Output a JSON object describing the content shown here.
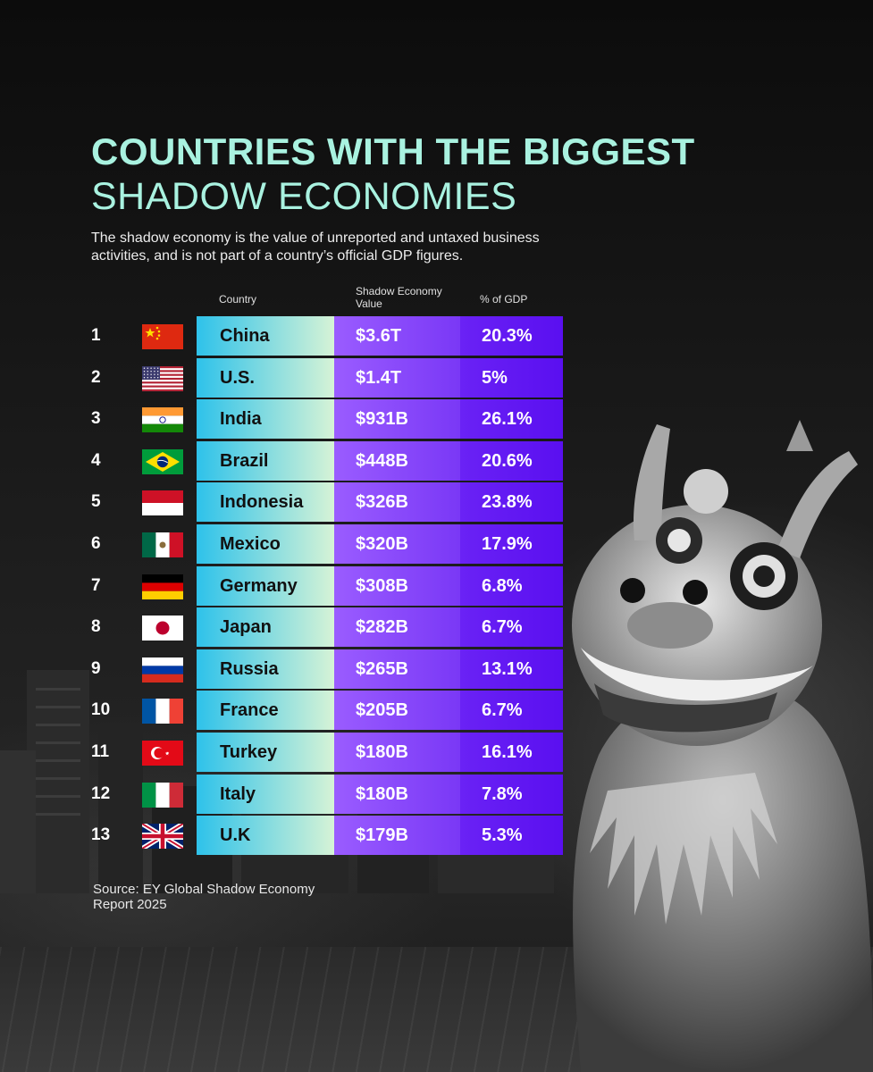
{
  "header": {
    "title_line1": "COUNTRIES WITH THE BIGGEST",
    "title_line2": "SHADOW ECONOMIES",
    "subtitle": "The shadow economy is the value of unreported and untaxed business activities, and is not part of a country’s official GDP figures."
  },
  "columns": {
    "country": "Country",
    "value": "Shadow Economy Value",
    "pct": "% of GDP"
  },
  "colors": {
    "title": "#a9f2e0",
    "country_cell_start": "#2ec2ea",
    "country_cell_end": "#d6f3d6",
    "value_cell": "#8c4cfc",
    "pct_cell": "#6318f3"
  },
  "chart_data": {
    "type": "table",
    "columns": [
      "Country",
      "Shadow Economy Value",
      "% of GDP"
    ],
    "rows": [
      {
        "rank": "1",
        "flag": "china-flag-icon",
        "country": "China",
        "value": "$3.6T",
        "pct": "20.3%"
      },
      {
        "rank": "2",
        "flag": "usa-flag-icon",
        "country": "U.S.",
        "value": "$1.4T",
        "pct": "5%"
      },
      {
        "rank": "3",
        "flag": "india-flag-icon",
        "country": "India",
        "value": "$931B",
        "pct": "26.1%"
      },
      {
        "rank": "4",
        "flag": "brazil-flag-icon",
        "country": "Brazil",
        "value": "$448B",
        "pct": "20.6%"
      },
      {
        "rank": "5",
        "flag": "indonesia-flag-icon",
        "country": "Indonesia",
        "value": "$326B",
        "pct": "23.8%"
      },
      {
        "rank": "6",
        "flag": "mexico-flag-icon",
        "country": "Mexico",
        "value": "$320B",
        "pct": "17.9%"
      },
      {
        "rank": "7",
        "flag": "germany-flag-icon",
        "country": "Germany",
        "value": "$308B",
        "pct": "6.8%"
      },
      {
        "rank": "8",
        "flag": "japan-flag-icon",
        "country": "Japan",
        "value": "$282B",
        "pct": "6.7%"
      },
      {
        "rank": "9",
        "flag": "russia-flag-icon",
        "country": "Russia",
        "value": "$265B",
        "pct": "13.1%"
      },
      {
        "rank": "10",
        "flag": "france-flag-icon",
        "country": "France",
        "value": "$205B",
        "pct": "6.7%"
      },
      {
        "rank": "11",
        "flag": "turkey-flag-icon",
        "country": "Turkey",
        "value": "$180B",
        "pct": "16.1%"
      },
      {
        "rank": "12",
        "flag": "italy-flag-icon",
        "country": "Italy",
        "value": "$180B",
        "pct": "7.8%"
      },
      {
        "rank": "13",
        "flag": "uk-flag-icon",
        "country": "U.K",
        "value": "$179B",
        "pct": "5.3%"
      }
    ]
  },
  "footer": {
    "source": "Source: EY Global Shadow Economy Report 2025"
  }
}
